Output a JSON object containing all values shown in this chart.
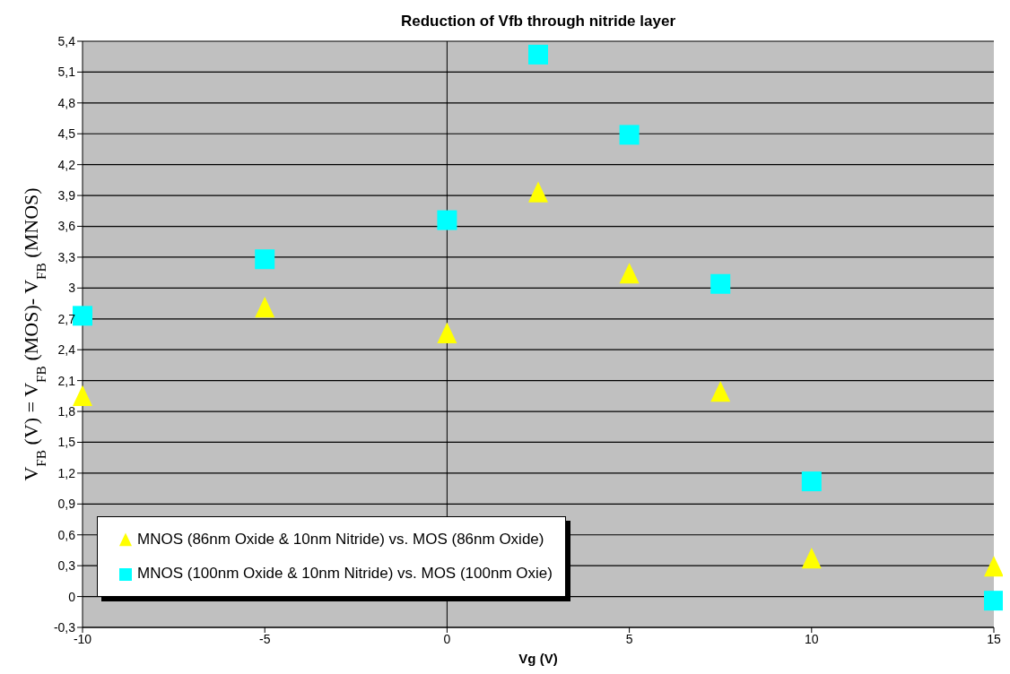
{
  "chart_data": {
    "type": "scatter",
    "title": "Reduction of Vfb through nitride layer",
    "xlabel": "Vg (V)",
    "ylabel": "V$_{FB}$ (V) = V$_{FB}$ (MOS)- V$_{FB}$ (MNOS)",
    "x": [
      -10,
      -5,
      0,
      2.5,
      5,
      7.5,
      10,
      15
    ],
    "series": [
      {
        "name": "MNOS (86nm Oxide & 10nm Nitride) vs. MOS (86nm Oxide)",
        "color": "#ffff00",
        "marker": "triangle",
        "values": [
          1.94,
          2.8,
          2.55,
          3.92,
          3.13,
          1.98,
          0.36,
          0.28
        ]
      },
      {
        "name": "MNOS (100nm Oxide & 10nm Nitride) vs. MOS (100nm Oxie)",
        "color": "#00ffff",
        "marker": "square",
        "values": [
          2.73,
          3.28,
          3.66,
          5.27,
          4.49,
          3.04,
          1.12,
          -0.04
        ]
      }
    ],
    "xlim": [
      -10,
      15
    ],
    "xticks": [
      -10,
      -5,
      0,
      5,
      10,
      15
    ],
    "ylim": [
      -0.3,
      5.4
    ],
    "yticks": [
      {
        "value": -0.3,
        "label": "-0,3"
      },
      {
        "value": 0,
        "label": "0"
      },
      {
        "value": 0.3,
        "label": "0,3"
      },
      {
        "value": 0.6,
        "label": "0,6"
      },
      {
        "value": 0.9,
        "label": "0,9"
      },
      {
        "value": 1.2,
        "label": "1,2"
      },
      {
        "value": 1.5,
        "label": "1,5"
      },
      {
        "value": 1.8,
        "label": "1,8"
      },
      {
        "value": 2.1,
        "label": "2,1"
      },
      {
        "value": 2.4,
        "label": "2,4"
      },
      {
        "value": 2.7,
        "label": "2,7"
      },
      {
        "value": 3,
        "label": "3"
      },
      {
        "value": 3.3,
        "label": "3,3"
      },
      {
        "value": 3.6,
        "label": "3,6"
      },
      {
        "value": 3.9,
        "label": "3,9"
      },
      {
        "value": 4.2,
        "label": "4,2"
      },
      {
        "value": 4.5,
        "label": "4,5"
      },
      {
        "value": 4.8,
        "label": "4,8"
      },
      {
        "value": 5.1,
        "label": "5,1"
      },
      {
        "value": 5.4,
        "label": "5,4"
      }
    ],
    "ref_lines": [
      {
        "axis": "x",
        "value": 0,
        "color": "#000000"
      }
    ],
    "grid": "y",
    "legend": "bottom left"
  }
}
